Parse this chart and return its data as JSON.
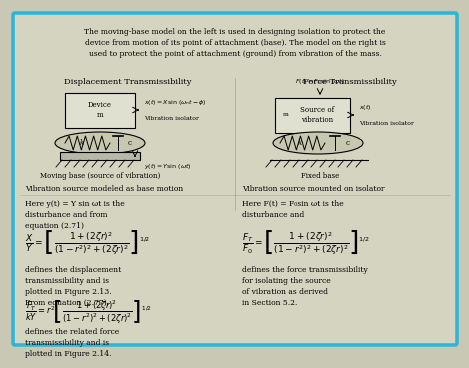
{
  "border_color": "#29B6D8",
  "bg_color": "#C8C8B4",
  "inner_bg": "#D4D4C0",
  "intro_text": "The moving-base model on the left is used in designing isolation to protect the\ndevice from motion of its point of attachment (base). The model on the right is\nused to protect the point of attachment (ground) from vibration of the mass.",
  "left_title": "Displacement Transmissibility",
  "right_title": "Force Transmissibility",
  "left_caption1": "Moving base (source of vibration)",
  "right_caption1": "Fixed base",
  "left_caption2": "Vibration source modeled as base motion",
  "right_caption2": "Vibration source mounted on isolator",
  "left_text1": "Here y(t) = Y sin ωt is the\ndisturbance and from\nequation (2.71)",
  "right_text1": "Here F(t) = F₀sin ωt is the\ndisturbance and",
  "left_def1": "defines the displacement\ntransmissibility and is\nplotted in Figure 2.13.\nFrom equation (2.77),",
  "right_def1": "defines the force transmissibility\nfor isolating the source\nof vibration as derived\nin Section 5.2.",
  "left_def2": "defines the related force\ntransmissibility and is\nplotted in Figure 2.14."
}
